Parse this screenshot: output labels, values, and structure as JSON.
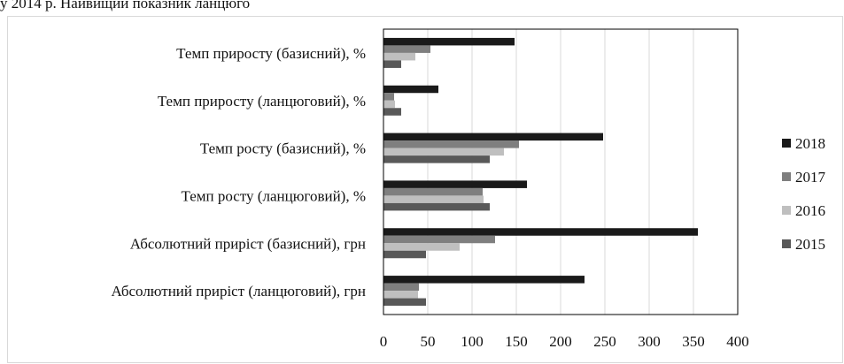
{
  "top_caption": "у 2014 р. Найвищий показник ланцюго",
  "chart_data": {
    "type": "bar",
    "orientation": "horizontal",
    "categories": [
      "Темп приросту (базисний), %",
      "Темп приросту (ланцюговий), %",
      "Темп росту (базисний), %",
      "Темп росту (ланцюговий), %",
      "Абсолютний приріст (базисний), грн",
      "Абсолютний приріст (ланцюговий), грн"
    ],
    "series": [
      {
        "name": "2018",
        "color": "#1a1a1a",
        "values": [
          148,
          62,
          248,
          162,
          355,
          227
        ]
      },
      {
        "name": "2017",
        "color": "#7f7f7f",
        "values": [
          53,
          12,
          153,
          112,
          126,
          40
        ]
      },
      {
        "name": "2016",
        "color": "#bfbfbf",
        "values": [
          36,
          13,
          136,
          113,
          86,
          39
        ]
      },
      {
        "name": "2015",
        "color": "#595959",
        "values": [
          20,
          20,
          120,
          120,
          48,
          48
        ]
      }
    ],
    "xlim": [
      0,
      400
    ],
    "xticks": [
      0,
      50,
      100,
      150,
      200,
      250,
      300,
      350,
      400
    ],
    "grid": "vertical",
    "legend": "right",
    "legend_order": [
      "2018",
      "2017",
      "2016",
      "2015"
    ]
  }
}
